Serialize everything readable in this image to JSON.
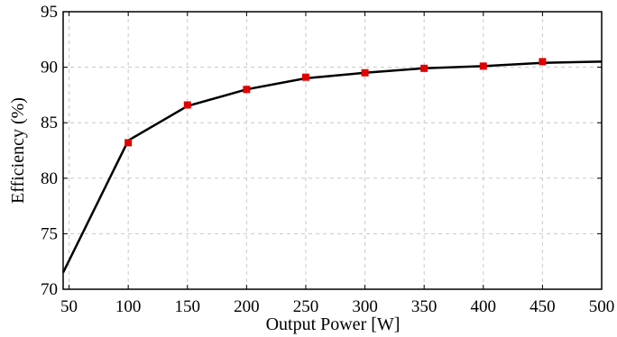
{
  "chart_data": {
    "type": "line",
    "title": "",
    "xlabel": "Output Power [W]",
    "ylabel": "Efficiency (%)",
    "xlim": [
      45,
      500
    ],
    "ylim": [
      70,
      95
    ],
    "grid": true,
    "x_ticks": [
      50,
      100,
      150,
      200,
      250,
      300,
      350,
      400,
      450,
      500
    ],
    "y_ticks": [
      70,
      75,
      80,
      85,
      90,
      95
    ],
    "series": [
      {
        "line": {
          "x": [
            45,
            100,
            150,
            200,
            250,
            300,
            350,
            400,
            450,
            500
          ],
          "y": [
            71.5,
            83.4,
            86.5,
            88.0,
            89.0,
            89.5,
            89.9,
            90.1,
            90.4,
            90.5
          ]
        },
        "markers": {
          "x": [
            100,
            150,
            200,
            250,
            300,
            350,
            400,
            450
          ],
          "y": [
            83.2,
            86.6,
            88.0,
            89.1,
            89.5,
            89.9,
            90.1,
            90.5
          ]
        },
        "color": "#000000",
        "marker_color": "#e00000"
      }
    ]
  }
}
